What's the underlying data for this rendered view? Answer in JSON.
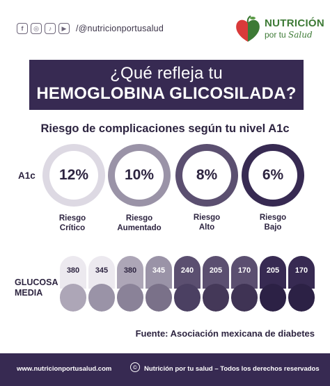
{
  "header": {
    "social_icons": [
      {
        "name": "facebook-icon",
        "glyph": "f"
      },
      {
        "name": "instagram-icon",
        "glyph": "◎"
      },
      {
        "name": "tiktok-icon",
        "glyph": "♪"
      },
      {
        "name": "youtube-icon",
        "glyph": "▶"
      }
    ],
    "handle": "/@nutricionportusalud",
    "logo": {
      "title": "NUTRICIÓN",
      "sub_prefix": "por tu",
      "sub_script": "Salud"
    }
  },
  "title": {
    "line1": "¿Qué refleja tu",
    "line2": "HEMOGLOBINA GLICOSILADA?"
  },
  "subtitle": "Riesgo de complicaciones según tu nivel A1c",
  "a1c": {
    "label": "A1c",
    "levels": [
      {
        "value": "12%",
        "risk_line1": "Riesgo",
        "risk_line2": "Crítico",
        "ring_color": "#ddd9e3"
      },
      {
        "value": "10%",
        "risk_line1": "Riesgo",
        "risk_line2": "Aumentado",
        "ring_color": "#9a93a7"
      },
      {
        "value": "8%",
        "risk_line1": "Riesgo",
        "risk_line2": "Alto",
        "ring_color": "#5b4f70"
      },
      {
        "value": "6%",
        "risk_line1": "Riesgo",
        "risk_line2": "Bajo",
        "ring_color": "#372a52"
      }
    ]
  },
  "glucosa": {
    "label_line1": "GLUCOSA",
    "label_line2": "MEDIA",
    "columns": [
      {
        "value": "380",
        "top_color": "#ece9ef",
        "bottom_color": "#ada6b7",
        "text_color": "#2d2440"
      },
      {
        "value": "345",
        "top_color": "#ece9ef",
        "bottom_color": "#9a93a7",
        "text_color": "#2d2440"
      },
      {
        "value": "380",
        "top_color": "#ada6b7",
        "bottom_color": "#8a8298",
        "text_color": "#2d2440"
      },
      {
        "value": "345",
        "top_color": "#9a93a7",
        "bottom_color": "#7a7189",
        "text_color": "#ffffff"
      },
      {
        "value": "240",
        "top_color": "#5b4f70",
        "bottom_color": "#4b4062",
        "text_color": "#ffffff"
      },
      {
        "value": "205",
        "top_color": "#5b4f70",
        "bottom_color": "#443858",
        "text_color": "#ffffff"
      },
      {
        "value": "170",
        "top_color": "#5b4f70",
        "bottom_color": "#3f3354",
        "text_color": "#ffffff"
      },
      {
        "value": "205",
        "top_color": "#372a52",
        "bottom_color": "#2c2145",
        "text_color": "#ffffff"
      },
      {
        "value": "170",
        "top_color": "#372a52",
        "bottom_color": "#2c2145",
        "text_color": "#ffffff"
      }
    ]
  },
  "source": "Fuente: Asociación mexicana de diabetes",
  "footer": {
    "website": "www.nutricionportusalud.com",
    "copyright_symbol": "©",
    "rights": "Nutrición por tu salud – Todos los derechos reservados"
  },
  "colors": {
    "brand_dark": "#372a52",
    "logo_green": "#3d7a35",
    "logo_red": "#d93a3a"
  }
}
